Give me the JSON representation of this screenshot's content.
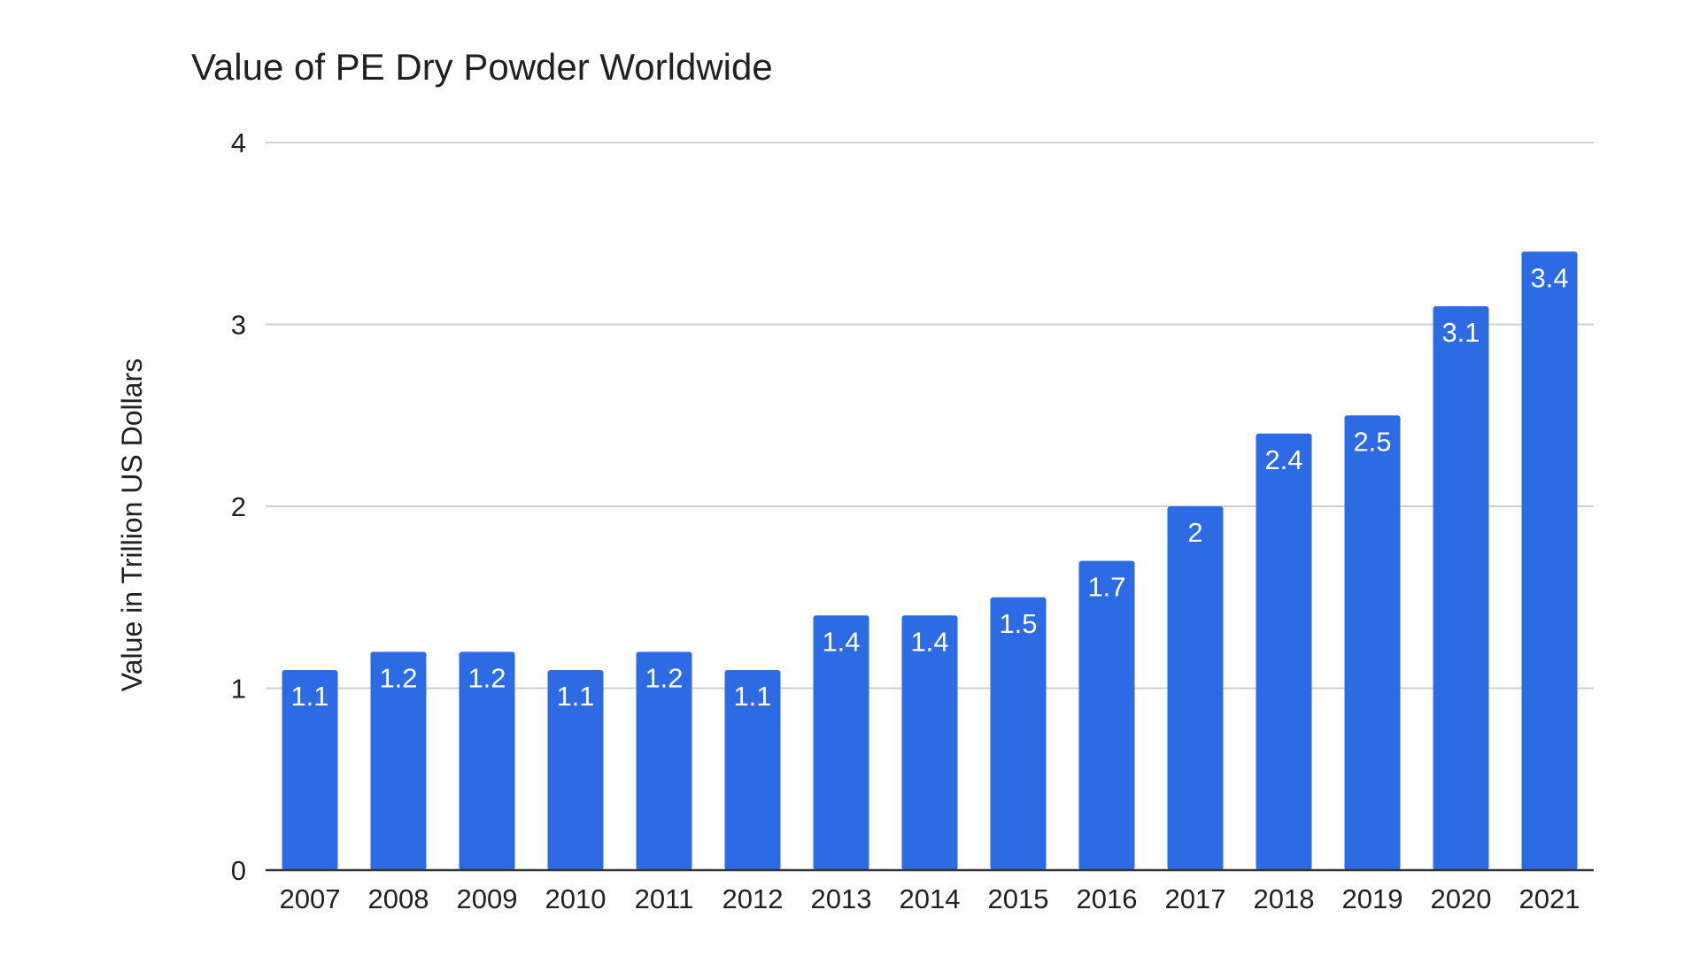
{
  "chart_data": {
    "type": "bar",
    "title": "Value of PE Dry Powder Worldwide",
    "xlabel": "",
    "ylabel": "Value in Trillion US Dollars",
    "categories": [
      "2007",
      "2008",
      "2009",
      "2010",
      "2011",
      "2012",
      "2013",
      "2014",
      "2015",
      "2016",
      "2017",
      "2018",
      "2019",
      "2020",
      "2021"
    ],
    "values": [
      1.1,
      1.2,
      1.2,
      1.1,
      1.2,
      1.1,
      1.4,
      1.4,
      1.5,
      1.7,
      2,
      2.4,
      2.5,
      3.1,
      3.4
    ],
    "value_labels": [
      "1.1",
      "1.2",
      "1.2",
      "1.1",
      "1.2",
      "1.1",
      "1.4",
      "1.4",
      "1.5",
      "1.7",
      "2",
      "2.4",
      "2.5",
      "3.1",
      "3.4"
    ],
    "ylim": [
      0,
      4
    ],
    "yticks": [
      "0",
      "1",
      "2",
      "3",
      "4"
    ],
    "grid": true,
    "legend": "none",
    "bar_color": "#2d6be4"
  }
}
